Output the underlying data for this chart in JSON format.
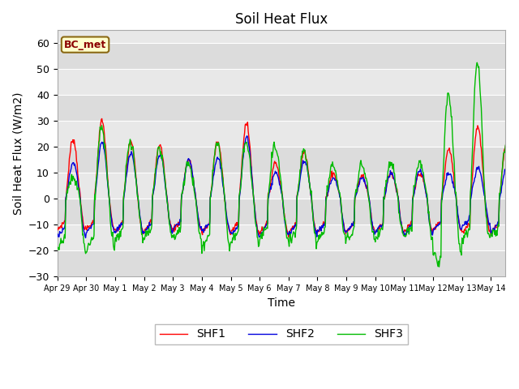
{
  "title": "Soil Heat Flux",
  "xlabel": "Time",
  "ylabel": "Soil Heat Flux (W/m2)",
  "ylim": [
    -30,
    65
  ],
  "yticks": [
    -30,
    -20,
    -10,
    0,
    10,
    20,
    30,
    40,
    50,
    60
  ],
  "background_color": "#ffffff",
  "plot_bg_color": "#e8e8e8",
  "band_colors": [
    "#dcdcdc",
    "#e8e8e8"
  ],
  "line_colors": [
    "#ff0000",
    "#0000dd",
    "#00bb00"
  ],
  "line_labels": [
    "SHF1",
    "SHF2",
    "SHF3"
  ],
  "annotation_text": "BC_met",
  "grid_color": "#ffffff",
  "title_fontsize": 12,
  "axis_fontsize": 10,
  "legend_fontsize": 10,
  "tick_fontsize": 9,
  "xtick_labels": [
    "Apr 29",
    "Apr 30",
    "May 1",
    "May 2",
    "May 3",
    "May 4",
    "May 5",
    "May 6",
    "May 7",
    "May 8",
    "May 9",
    "May 10",
    "May 11",
    "May 12",
    "May 13",
    "May 14"
  ],
  "n_days": 15.5
}
